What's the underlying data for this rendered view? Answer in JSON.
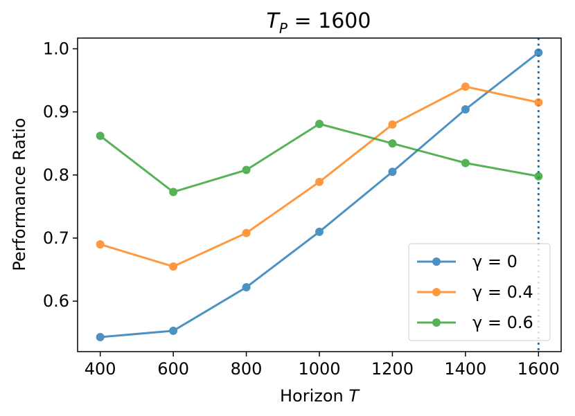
{
  "chart_data": {
    "type": "line",
    "title": "T_P = 1600",
    "title_main": "T",
    "title_sub": "P",
    "title_rest": " = 1600",
    "xlabel": "Horizon ",
    "xlabel_var": "T",
    "ylabel": "Performance Ratio",
    "x": [
      400,
      600,
      800,
      1000,
      1200,
      1400,
      1600
    ],
    "xlim": [
      338,
      1662
    ],
    "ylim": [
      0.52,
      1.017
    ],
    "xticks": [
      400,
      600,
      800,
      1000,
      1200,
      1400,
      1600
    ],
    "xtick_labels": [
      "400",
      "600",
      "800",
      "1000",
      "1200",
      "1400",
      "1600"
    ],
    "yticks": [
      0.6,
      0.7,
      0.8,
      0.9,
      1.0
    ],
    "ytick_labels": [
      "0.6",
      "0.7",
      "0.8",
      "0.9",
      "1.0"
    ],
    "vline": {
      "x": 1600,
      "style": "dotted",
      "color": "#1f77b4"
    },
    "grid": false,
    "legend_placement": "lower-right",
    "series": [
      {
        "name": "γ = 0",
        "color": "#1f77b4",
        "values": [
          0.543,
          0.553,
          0.622,
          0.71,
          0.805,
          0.904,
          0.994
        ]
      },
      {
        "name": "γ = 0.4",
        "color": "#ff7f0e",
        "values": [
          0.69,
          0.655,
          0.708,
          0.789,
          0.88,
          0.94,
          0.915
        ]
      },
      {
        "name": "γ = 0.6",
        "color": "#2ca02c",
        "values": [
          0.862,
          0.773,
          0.808,
          0.881,
          0.85,
          0.819,
          0.798
        ]
      }
    ]
  }
}
